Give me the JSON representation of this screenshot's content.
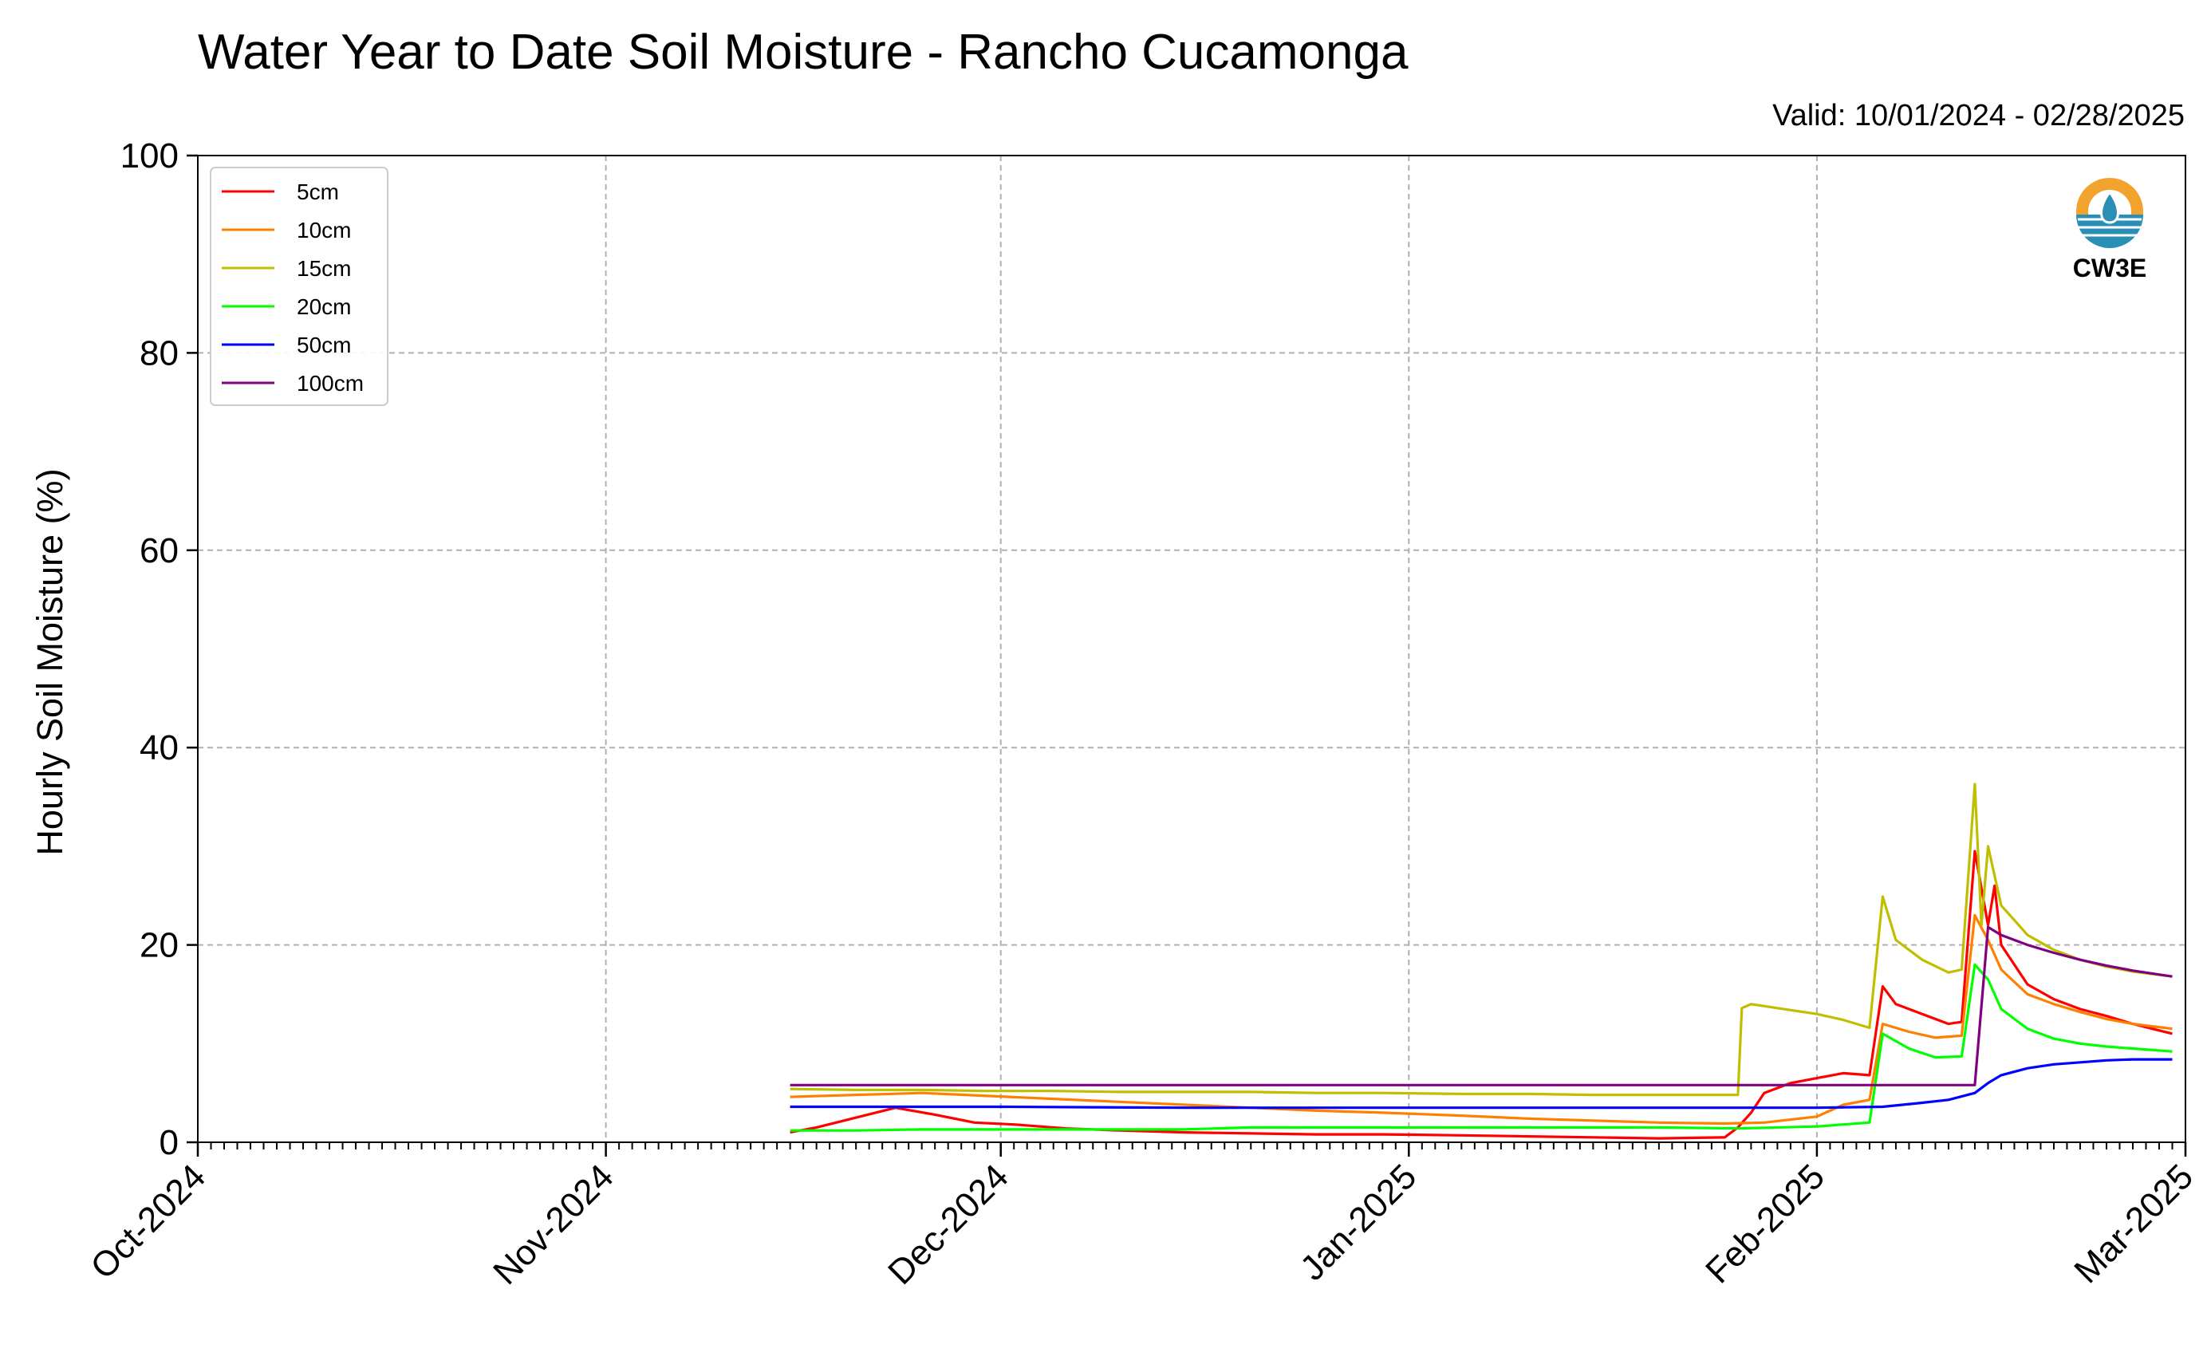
{
  "chart_data": {
    "type": "line",
    "title": "Water Year to Date Soil Moisture - Rancho Cucamonga",
    "subtitle": "Valid: 10/01/2024 - 02/28/2025",
    "xlabel": "",
    "ylabel": "Hourly Soil Moisture (%)",
    "x_range": [
      "2024-10-01",
      "2025-03-01"
    ],
    "ylim": [
      0,
      100
    ],
    "x_ticks": [
      "Oct-2024",
      "Nov-2024",
      "Dec-2024",
      "Jan-2025",
      "Feb-2025",
      "Mar-2025"
    ],
    "x_tick_dates": [
      "2024-10-01",
      "2024-11-01",
      "2024-12-01",
      "2025-01-01",
      "2025-02-01",
      "2025-03-01"
    ],
    "y_ticks": [
      0,
      20,
      40,
      60,
      80,
      100
    ],
    "grid": true,
    "legend_position": "top-left",
    "series": [
      {
        "name": "5cm",
        "color": "#ff0000",
        "points": [
          [
            "2024-11-15",
            1.0
          ],
          [
            "2024-11-17",
            1.5
          ],
          [
            "2024-11-20",
            2.5
          ],
          [
            "2024-11-23",
            3.5
          ],
          [
            "2024-11-26",
            2.8
          ],
          [
            "2024-11-29",
            2.0
          ],
          [
            "2024-12-02",
            1.8
          ],
          [
            "2024-12-06",
            1.4
          ],
          [
            "2024-12-10",
            1.2
          ],
          [
            "2024-12-15",
            1.0
          ],
          [
            "2024-12-20",
            0.9
          ],
          [
            "2024-12-25",
            0.8
          ],
          [
            "2024-12-30",
            0.8
          ],
          [
            "2025-01-05",
            0.7
          ],
          [
            "2025-01-10",
            0.6
          ],
          [
            "2025-01-15",
            0.5
          ],
          [
            "2025-01-20",
            0.4
          ],
          [
            "2025-01-25",
            0.5
          ],
          [
            "2025-01-26",
            1.5
          ],
          [
            "2025-01-27",
            3.0
          ],
          [
            "2025-01-28",
            5.0
          ],
          [
            "2025-01-30",
            6.0
          ],
          [
            "2025-02-01",
            6.5
          ],
          [
            "2025-02-03",
            7.0
          ],
          [
            "2025-02-05",
            6.8
          ],
          [
            "2025-02-06",
            15.8
          ],
          [
            "2025-02-07",
            14.0
          ],
          [
            "2025-02-09",
            13.0
          ],
          [
            "2025-02-11",
            12.0
          ],
          [
            "2025-02-12",
            12.2
          ],
          [
            "2025-02-13",
            29.5
          ],
          [
            "2025-02-14",
            22.0
          ],
          [
            "2025-02-14.5",
            26.0
          ],
          [
            "2025-02-15",
            20.0
          ],
          [
            "2025-02-17",
            16.0
          ],
          [
            "2025-02-19",
            14.5
          ],
          [
            "2025-02-21",
            13.5
          ],
          [
            "2025-02-23",
            12.8
          ],
          [
            "2025-02-25",
            12.0
          ],
          [
            "2025-02-28",
            11.0
          ]
        ]
      },
      {
        "name": "10cm",
        "color": "#ff8000",
        "points": [
          [
            "2024-11-15",
            4.6
          ],
          [
            "2024-11-20",
            4.8
          ],
          [
            "2024-11-25",
            5.0
          ],
          [
            "2024-11-30",
            4.7
          ],
          [
            "2024-12-05",
            4.4
          ],
          [
            "2024-12-10",
            4.1
          ],
          [
            "2024-12-15",
            3.8
          ],
          [
            "2024-12-20",
            3.5
          ],
          [
            "2024-12-25",
            3.2
          ],
          [
            "2024-12-30",
            3.0
          ],
          [
            "2025-01-05",
            2.7
          ],
          [
            "2025-01-10",
            2.4
          ],
          [
            "2025-01-15",
            2.2
          ],
          [
            "2025-01-20",
            2.0
          ],
          [
            "2025-01-25",
            1.9
          ],
          [
            "2025-01-28",
            2.0
          ],
          [
            "2025-02-01",
            2.6
          ],
          [
            "2025-02-03",
            3.8
          ],
          [
            "2025-02-05",
            4.3
          ],
          [
            "2025-02-06",
            12.0
          ],
          [
            "2025-02-08",
            11.2
          ],
          [
            "2025-02-10",
            10.6
          ],
          [
            "2025-02-12",
            10.8
          ],
          [
            "2025-02-13",
            23.0
          ],
          [
            "2025-02-14",
            20.5
          ],
          [
            "2025-02-15",
            17.5
          ],
          [
            "2025-02-17",
            15.0
          ],
          [
            "2025-02-19",
            14.0
          ],
          [
            "2025-02-21",
            13.2
          ],
          [
            "2025-02-23",
            12.5
          ],
          [
            "2025-02-25",
            12.0
          ],
          [
            "2025-02-28",
            11.5
          ]
        ]
      },
      {
        "name": "15cm",
        "color": "#bfbf00",
        "points": [
          [
            "2024-11-15",
            5.4
          ],
          [
            "2024-11-20",
            5.3
          ],
          [
            "2024-11-25",
            5.3
          ],
          [
            "2024-11-30",
            5.2
          ],
          [
            "2024-12-05",
            5.2
          ],
          [
            "2024-12-10",
            5.1
          ],
          [
            "2024-12-15",
            5.1
          ],
          [
            "2024-12-20",
            5.1
          ],
          [
            "2024-12-25",
            5.0
          ],
          [
            "2024-12-30",
            5.0
          ],
          [
            "2025-01-05",
            4.9
          ],
          [
            "2025-01-10",
            4.9
          ],
          [
            "2025-01-15",
            4.8
          ],
          [
            "2025-01-20",
            4.8
          ],
          [
            "2025-01-26",
            4.8
          ],
          [
            "2025-01-26.3",
            13.6
          ],
          [
            "2025-01-27",
            14.0
          ],
          [
            "2025-01-29",
            13.6
          ],
          [
            "2025-02-01",
            13.0
          ],
          [
            "2025-02-03",
            12.4
          ],
          [
            "2025-02-05",
            11.6
          ],
          [
            "2025-02-06",
            24.9
          ],
          [
            "2025-02-07",
            20.5
          ],
          [
            "2025-02-09",
            18.5
          ],
          [
            "2025-02-11",
            17.2
          ],
          [
            "2025-02-12",
            17.5
          ],
          [
            "2025-02-13",
            36.3
          ],
          [
            "2025-02-13.5",
            22.0
          ],
          [
            "2025-02-14",
            30.0
          ],
          [
            "2025-02-15",
            24.0
          ],
          [
            "2025-02-17",
            21.0
          ],
          [
            "2025-02-19",
            19.5
          ],
          [
            "2025-02-21",
            18.5
          ],
          [
            "2025-02-23",
            17.8
          ],
          [
            "2025-02-25",
            17.3
          ],
          [
            "2025-02-28",
            16.8
          ]
        ]
      },
      {
        "name": "20cm",
        "color": "#00ff00",
        "points": [
          [
            "2024-11-15",
            1.2
          ],
          [
            "2024-11-20",
            1.2
          ],
          [
            "2024-11-25",
            1.3
          ],
          [
            "2024-11-30",
            1.3
          ],
          [
            "2024-12-05",
            1.3
          ],
          [
            "2024-12-10",
            1.3
          ],
          [
            "2024-12-15",
            1.3
          ],
          [
            "2024-12-20",
            1.5
          ],
          [
            "2024-12-25",
            1.5
          ],
          [
            "2024-12-30",
            1.5
          ],
          [
            "2025-01-05",
            1.5
          ],
          [
            "2025-01-10",
            1.5
          ],
          [
            "2025-01-15",
            1.5
          ],
          [
            "2025-01-20",
            1.5
          ],
          [
            "2025-01-26",
            1.4
          ],
          [
            "2025-02-01",
            1.6
          ],
          [
            "2025-02-03",
            1.8
          ],
          [
            "2025-02-05",
            2.0
          ],
          [
            "2025-02-06",
            11.0
          ],
          [
            "2025-02-08",
            9.5
          ],
          [
            "2025-02-10",
            8.6
          ],
          [
            "2025-02-12",
            8.7
          ],
          [
            "2025-02-13",
            18.0
          ],
          [
            "2025-02-14",
            16.5
          ],
          [
            "2025-02-15",
            13.5
          ],
          [
            "2025-02-17",
            11.5
          ],
          [
            "2025-02-19",
            10.5
          ],
          [
            "2025-02-21",
            10.0
          ],
          [
            "2025-02-23",
            9.7
          ],
          [
            "2025-02-25",
            9.5
          ],
          [
            "2025-02-28",
            9.2
          ]
        ]
      },
      {
        "name": "50cm",
        "color": "#0000ff",
        "points": [
          [
            "2024-11-15",
            3.6
          ],
          [
            "2024-12-01",
            3.6
          ],
          [
            "2024-12-15",
            3.5
          ],
          [
            "2025-01-01",
            3.5
          ],
          [
            "2025-01-15",
            3.5
          ],
          [
            "2025-02-01",
            3.5
          ],
          [
            "2025-02-06",
            3.6
          ],
          [
            "2025-02-09",
            4.0
          ],
          [
            "2025-02-11",
            4.3
          ],
          [
            "2025-02-13",
            5.0
          ],
          [
            "2025-02-14",
            6.0
          ],
          [
            "2025-02-15",
            6.8
          ],
          [
            "2025-02-17",
            7.5
          ],
          [
            "2025-02-19",
            7.9
          ],
          [
            "2025-02-21",
            8.1
          ],
          [
            "2025-02-23",
            8.3
          ],
          [
            "2025-02-25",
            8.4
          ],
          [
            "2025-02-28",
            8.4
          ]
        ]
      },
      {
        "name": "100cm",
        "color": "#800080",
        "points": [
          [
            "2024-11-15",
            5.8
          ],
          [
            "2024-12-15",
            5.8
          ],
          [
            "2025-01-15",
            5.8
          ],
          [
            "2025-02-13",
            5.8
          ],
          [
            "2025-02-14",
            21.8
          ],
          [
            "2025-02-15",
            21.0
          ],
          [
            "2025-02-17",
            20.0
          ],
          [
            "2025-02-19",
            19.2
          ],
          [
            "2025-02-21",
            18.5
          ],
          [
            "2025-02-23",
            17.9
          ],
          [
            "2025-02-25",
            17.4
          ],
          [
            "2025-02-28",
            16.8
          ]
        ]
      }
    ]
  },
  "logo": {
    "text": "CW3E",
    "colors": {
      "ring": "#f2a32e",
      "wave": "#2a8fb5",
      "text": "#2a8fb5"
    }
  }
}
